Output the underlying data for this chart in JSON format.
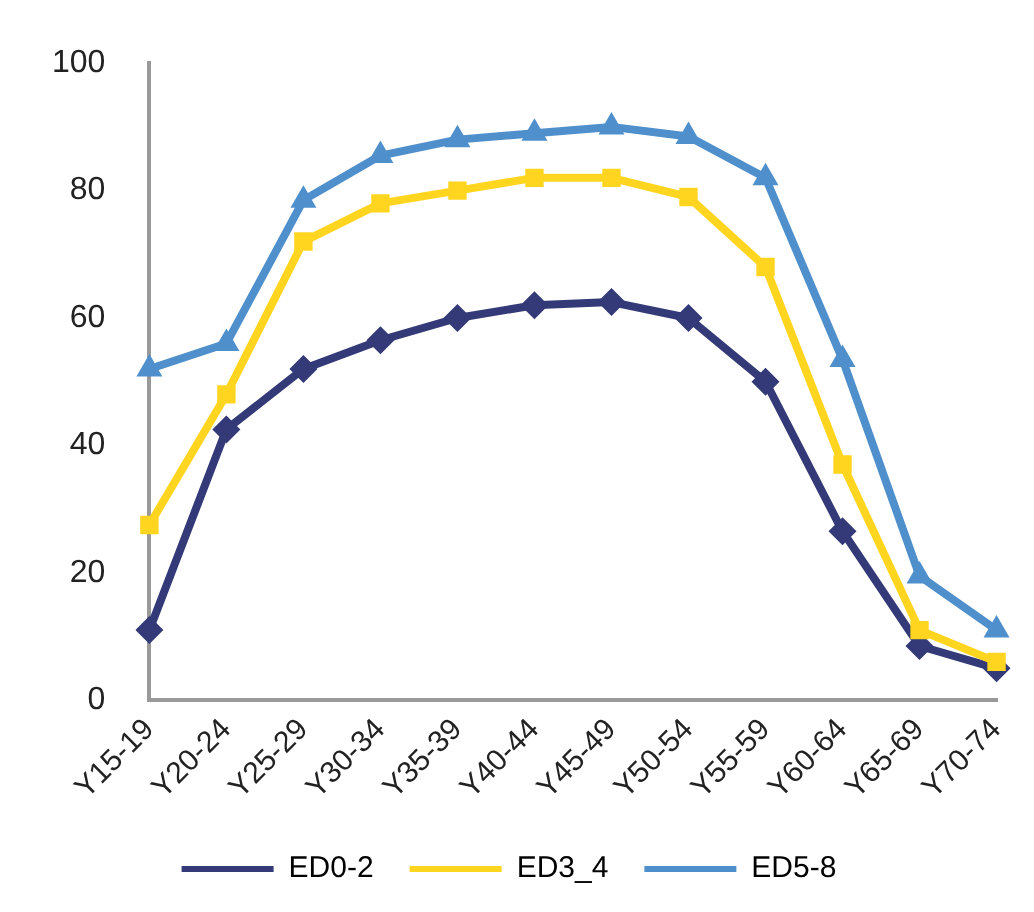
{
  "chart_data": {
    "type": "line",
    "categories": [
      "Y15-19",
      "Y20-24",
      "Y25-29",
      "Y30-34",
      "Y35-39",
      "Y40-44",
      "Y45-49",
      "Y50-54",
      "Y55-59",
      "Y60-64",
      "Y65-69",
      "Y70-74"
    ],
    "series": [
      {
        "name": "ED0-2",
        "color": "#333a77",
        "marker": "diamond",
        "values": [
          11,
          42.5,
          52,
          56.5,
          60,
          62,
          62.5,
          60,
          50,
          26.5,
          8.5,
          5
        ]
      },
      {
        "name": "ED3_4",
        "color": "#ffd51f",
        "marker": "square",
        "values": [
          27.5,
          48,
          72,
          78,
          80,
          82,
          82,
          79,
          68,
          37,
          11,
          6
        ]
      },
      {
        "name": "ED5-8",
        "color": "#4e8fcc",
        "marker": "triangle",
        "values": [
          52,
          56,
          78.5,
          85.5,
          88,
          89,
          90,
          88.5,
          82,
          53.5,
          19.5,
          11
        ]
      }
    ],
    "ylim": [
      0,
      100
    ],
    "yticks": [
      0,
      20,
      40,
      60,
      80,
      100
    ],
    "grid": false,
    "legend": "bottom",
    "line_style": "solid"
  }
}
